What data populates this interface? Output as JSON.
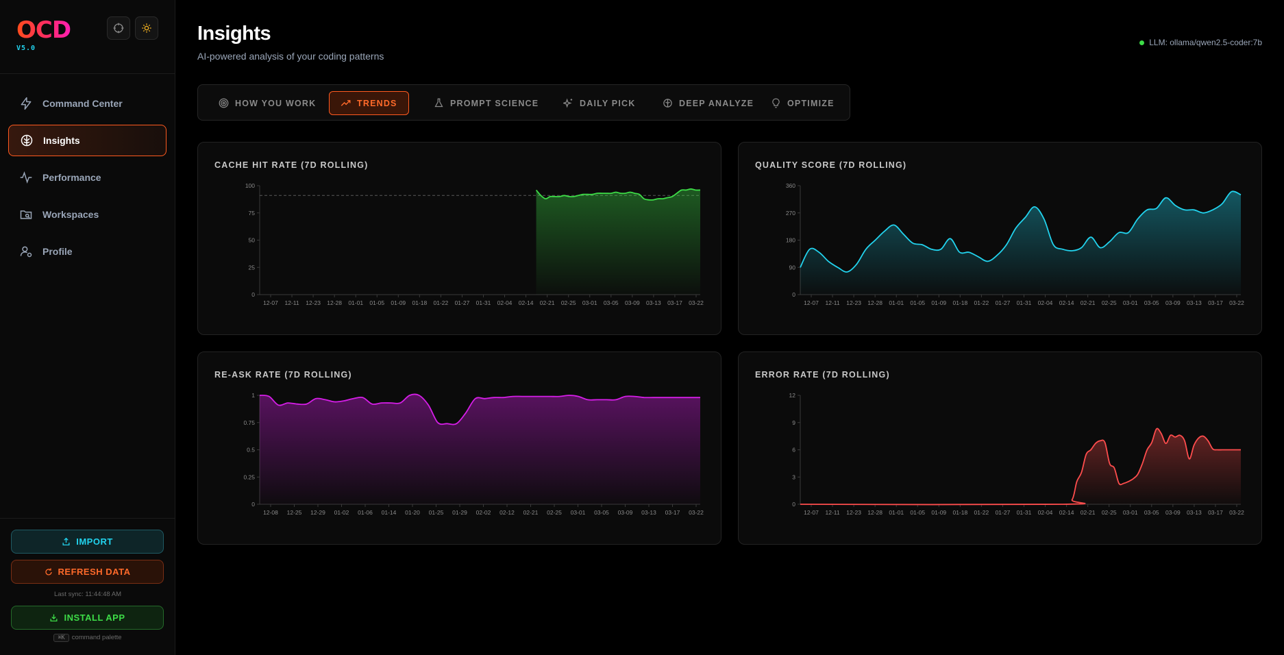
{
  "app": {
    "logo": "OCD",
    "version": "V5.0"
  },
  "sidebar": {
    "items": [
      {
        "label": "Command Center",
        "icon": "bolt-icon",
        "active": false
      },
      {
        "label": "Insights",
        "icon": "brain-icon",
        "active": true
      },
      {
        "label": "Performance",
        "icon": "activity-icon",
        "active": false
      },
      {
        "label": "Workspaces",
        "icon": "folder-search-icon",
        "active": false
      },
      {
        "label": "Profile",
        "icon": "user-gear-icon",
        "active": false
      }
    ],
    "import_label": "IMPORT",
    "refresh_label": "REFRESH DATA",
    "last_sync": "Last sync: 11:44:48 AM",
    "install_label": "INSTALL APP",
    "palette_key": "⌘K",
    "palette_label": "command palette"
  },
  "header": {
    "title": "Insights",
    "subtitle": "AI-powered analysis of your coding patterns",
    "llm_status": "LLM: ollama/qwen2.5-coder:7b",
    "status_color": "#3ddc47"
  },
  "tabs": [
    {
      "label": "HOW YOU WORK",
      "icon": "target-icon",
      "active": false
    },
    {
      "label": "TRENDS",
      "icon": "trending-up-icon",
      "active": true
    },
    {
      "label": "PROMPT SCIENCE",
      "icon": "flask-icon",
      "active": false
    },
    {
      "label": "DAILY PICK",
      "icon": "sparkles-icon",
      "active": false
    },
    {
      "label": "DEEP ANALYZE",
      "icon": "brain-icon",
      "active": false
    },
    {
      "label": "OPTIMIZE",
      "icon": "lightbulb-icon",
      "active": false
    }
  ],
  "chart_data": [
    {
      "type": "area",
      "title": "CACHE HIT RATE (7D ROLLING)",
      "color": "#3ddc47",
      "ylim": [
        0,
        100
      ],
      "yticks": [
        "0",
        "25",
        "50",
        "75",
        "100"
      ],
      "xticks": [
        "12-07",
        "12-11",
        "12-23",
        "12-28",
        "01-01",
        "01-05",
        "01-09",
        "01-18",
        "01-22",
        "01-27",
        "01-31",
        "02-04",
        "02-14",
        "02-21",
        "02-25",
        "03-01",
        "03-05",
        "03-09",
        "03-13",
        "03-17",
        "03-22"
      ],
      "reference_line": 91,
      "x_range": [
        0,
        94
      ],
      "series": [
        {
          "x": [
            59,
            60,
            61,
            62,
            63,
            64,
            65,
            66,
            67,
            68,
            69,
            70,
            71,
            72,
            73,
            74,
            75,
            76,
            77,
            78,
            79,
            80,
            81,
            82,
            83,
            84,
            85,
            86,
            87,
            88,
            89,
            90,
            91,
            92,
            93,
            94
          ],
          "values": [
            96,
            91,
            88,
            90,
            90,
            90,
            91,
            90,
            90,
            91,
            92,
            92,
            92,
            93,
            93,
            93,
            93,
            94,
            93,
            93,
            94,
            93,
            92,
            88,
            87,
            87,
            88,
            88,
            89,
            90,
            93,
            96,
            96,
            97,
            96,
            96
          ]
        }
      ]
    },
    {
      "type": "area",
      "title": "QUALITY SCORE (7D ROLLING)",
      "color": "#22d3ee",
      "ylim": [
        0,
        360
      ],
      "yticks": [
        "0",
        "90",
        "180",
        "270",
        "360"
      ],
      "xticks": [
        "12-07",
        "12-11",
        "12-23",
        "12-28",
        "01-01",
        "01-05",
        "01-09",
        "01-18",
        "01-22",
        "01-27",
        "01-31",
        "02-04",
        "02-14",
        "02-21",
        "02-25",
        "03-01",
        "03-05",
        "03-09",
        "03-13",
        "03-17",
        "03-22"
      ],
      "x_range": [
        0,
        94
      ],
      "series": [
        {
          "x": [
            0,
            2,
            4,
            6,
            8,
            10,
            12,
            14,
            16,
            18,
            20,
            22,
            24,
            26,
            28,
            30,
            32,
            34,
            36,
            38,
            40,
            42,
            44,
            46,
            48,
            50,
            52,
            54,
            56,
            58,
            60,
            62,
            64,
            66,
            68,
            70,
            72,
            74,
            76,
            78,
            80,
            82,
            84,
            86,
            88,
            90,
            92,
            94
          ],
          "values": [
            90,
            150,
            140,
            110,
            90,
            75,
            100,
            150,
            180,
            210,
            230,
            200,
            170,
            165,
            150,
            150,
            185,
            140,
            140,
            125,
            110,
            130,
            165,
            220,
            255,
            290,
            250,
            165,
            150,
            145,
            155,
            190,
            155,
            175,
            205,
            205,
            250,
            280,
            285,
            320,
            295,
            280,
            280,
            270,
            280,
            300,
            340,
            330
          ]
        }
      ]
    },
    {
      "type": "area",
      "title": "RE-ASK RATE (7D ROLLING)",
      "color": "#d61ee8",
      "ylim": [
        0,
        1
      ],
      "yticks": [
        "0",
        "0.25",
        "0.5",
        "0.75",
        "1"
      ],
      "xticks": [
        "12-08",
        "12-25",
        "12-29",
        "01-02",
        "01-06",
        "01-14",
        "01-20",
        "01-25",
        "01-29",
        "02-02",
        "02-12",
        "02-21",
        "02-25",
        "03-01",
        "03-05",
        "03-09",
        "03-13",
        "03-17",
        "03-22"
      ],
      "x_range": [
        0,
        94
      ],
      "series": [
        {
          "x": [
            0,
            2,
            4,
            6,
            8,
            10,
            12,
            14,
            16,
            18,
            20,
            22,
            24,
            26,
            28,
            30,
            32,
            34,
            36,
            38,
            40,
            42,
            44,
            46,
            48,
            50,
            52,
            54,
            56,
            58,
            60,
            62,
            64,
            66,
            68,
            70,
            72,
            74,
            76,
            78,
            80,
            82,
            84,
            86,
            88,
            90,
            92,
            94
          ],
          "values": [
            1,
            0.99,
            0.91,
            0.93,
            0.92,
            0.92,
            0.97,
            0.96,
            0.94,
            0.95,
            0.97,
            0.98,
            0.92,
            0.93,
            0.93,
            0.93,
            1,
            1,
            0.91,
            0.75,
            0.74,
            0.74,
            0.84,
            0.97,
            0.97,
            0.98,
            0.98,
            0.99,
            0.99,
            0.99,
            0.99,
            0.99,
            0.99,
            1,
            0.99,
            0.96,
            0.96,
            0.96,
            0.96,
            0.99,
            0.99,
            0.98,
            0.98,
            0.98,
            0.98,
            0.98,
            0.98,
            0.98
          ]
        }
      ]
    },
    {
      "type": "area",
      "title": "ERROR RATE (7D ROLLING)",
      "color": "#ff4d4d",
      "ylim": [
        0,
        12
      ],
      "yticks": [
        "0",
        "3",
        "6",
        "9",
        "12"
      ],
      "xticks": [
        "12-07",
        "12-11",
        "12-23",
        "12-28",
        "01-01",
        "01-05",
        "01-09",
        "01-18",
        "01-22",
        "01-27",
        "01-31",
        "02-04",
        "02-14",
        "02-21",
        "02-25",
        "03-01",
        "03-05",
        "03-09",
        "03-13",
        "03-17",
        "03-22"
      ],
      "x_range": [
        0,
        94
      ],
      "series": [
        {
          "x": [
            0,
            56,
            58,
            59,
            60,
            61,
            62,
            63,
            64,
            65,
            66,
            67,
            68,
            69,
            70,
            71,
            72,
            73,
            74,
            75,
            76,
            77,
            78,
            79,
            80,
            81,
            82,
            83,
            84,
            85,
            86,
            87,
            88,
            89,
            90,
            91,
            92,
            93,
            94
          ],
          "values": [
            0,
            0,
            0.5,
            2.5,
            3.5,
            5.5,
            6,
            6.7,
            7,
            6.8,
            4.5,
            4,
            2.3,
            2.3,
            2.5,
            2.8,
            3.3,
            4.5,
            6,
            6.8,
            8.3,
            7.8,
            6.7,
            7.6,
            7.4,
            7.6,
            7,
            5,
            6.5,
            7.3,
            7.5,
            7,
            6.1,
            6,
            6,
            6,
            6,
            6,
            6
          ]
        }
      ]
    }
  ]
}
